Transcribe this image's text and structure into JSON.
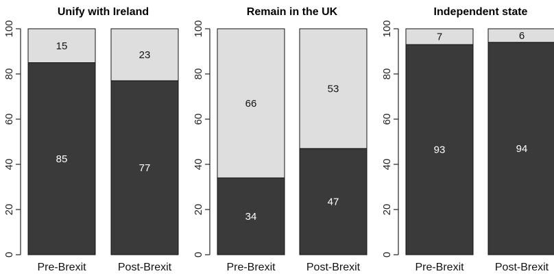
{
  "chart_data": [
    {
      "type": "bar",
      "stacked": true,
      "title": "Unify with Ireland",
      "categories": [
        "Pre-Brexit",
        "Post-Brexit"
      ],
      "series": [
        {
          "values": [
            85,
            77
          ],
          "color": "#3a3a3a"
        },
        {
          "values": [
            15,
            23
          ],
          "color": "#dedede"
        }
      ],
      "ylim": [
        0,
        100
      ],
      "yticks": [
        "0",
        "20",
        "40",
        "60",
        "80",
        "100"
      ]
    },
    {
      "type": "bar",
      "stacked": true,
      "title": "Remain in the UK",
      "categories": [
        "Pre-Brexit",
        "Post-Brexit"
      ],
      "series": [
        {
          "values": [
            34,
            47
          ],
          "color": "#3a3a3a"
        },
        {
          "values": [
            66,
            53
          ],
          "color": "#dedede"
        }
      ],
      "ylim": [
        0,
        100
      ],
      "yticks": [
        "0",
        "20",
        "40",
        "60",
        "80",
        "100"
      ]
    },
    {
      "type": "bar",
      "stacked": true,
      "title": "Independent state",
      "categories": [
        "Pre-Brexit",
        "Post-Brexit"
      ],
      "series": [
        {
          "values": [
            93,
            94
          ],
          "color": "#3a3a3a"
        },
        {
          "values": [
            7,
            6
          ],
          "color": "#dedede"
        }
      ],
      "ylim": [
        0,
        100
      ],
      "yticks": [
        "0",
        "20",
        "40",
        "60",
        "80",
        "100"
      ]
    }
  ]
}
